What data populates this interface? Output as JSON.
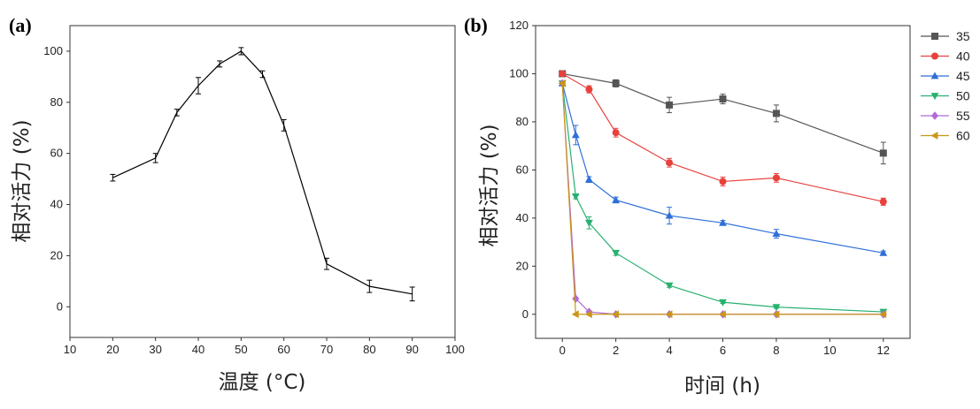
{
  "chart_data": [
    {
      "panel_label": "(a)",
      "type": "line",
      "xlabel": "温度 (°C)",
      "ylabel": "相对活力 (%)",
      "xlim": [
        10,
        100
      ],
      "ylim": [
        -12,
        110
      ],
      "x_ticks": [
        10,
        20,
        30,
        40,
        50,
        60,
        70,
        80,
        90,
        100
      ],
      "y_ticks": [
        0,
        20,
        40,
        60,
        80,
        100
      ],
      "series": [
        {
          "color": "#000000",
          "x": [
            20,
            30,
            35,
            40,
            45,
            50,
            55,
            60,
            70,
            80,
            90
          ],
          "y": [
            50.5,
            58.2,
            76,
            86.5,
            95,
            100,
            91,
            71,
            16.8,
            8,
            5
          ],
          "err": [
            1.3,
            1.8,
            1.3,
            3.2,
            1.2,
            1.4,
            1.3,
            2.2,
            2.2,
            2.4,
            2.7
          ]
        }
      ]
    },
    {
      "panel_label": "(b)",
      "type": "line",
      "xlabel": "时间 (h)",
      "ylabel": "相对活力 (%)",
      "xlim": [
        -1,
        13
      ],
      "ylim": [
        -10,
        120
      ],
      "x_ticks": [
        0,
        2,
        4,
        6,
        8,
        10,
        12
      ],
      "y_ticks": [
        0,
        20,
        40,
        60,
        80,
        100,
        120
      ],
      "legend_position": "outside-right",
      "series": [
        {
          "name": "35",
          "color": "#555555",
          "marker": "square",
          "x": [
            0,
            2,
            4,
            6,
            8,
            12
          ],
          "y": [
            100,
            96,
            87,
            89.5,
            83.5,
            67
          ],
          "err": [
            0,
            1.5,
            3.2,
            2,
            3.5,
            4.5
          ]
        },
        {
          "name": "40",
          "color": "#e8413c",
          "marker": "circle",
          "x": [
            0,
            1,
            2,
            4,
            6,
            8,
            12
          ],
          "y": [
            100,
            93.5,
            75.5,
            63,
            55.2,
            56.7,
            46.8
          ],
          "err": [
            0,
            1.5,
            1.8,
            1.8,
            1.8,
            1.8,
            1.5
          ]
        },
        {
          "name": "45",
          "color": "#2e6fd8",
          "marker": "triangle-up",
          "x": [
            0,
            0.5,
            1,
            2,
            4,
            6,
            8,
            12
          ],
          "y": [
            96,
            74.5,
            56,
            47.5,
            41,
            38,
            33.5,
            25.5
          ],
          "err": [
            0,
            4,
            1.2,
            1.2,
            3.5,
            1,
            1.8,
            0.8
          ]
        },
        {
          "name": "50",
          "color": "#27b16f",
          "marker": "triangle-down",
          "x": [
            0,
            0.5,
            1,
            2,
            4,
            6,
            8,
            12
          ],
          "y": [
            96,
            49,
            38,
            25.5,
            12,
            5,
            3,
            1
          ],
          "err": [
            0,
            1,
            2.5,
            1,
            0.8,
            0.5,
            0.5,
            0.3
          ]
        },
        {
          "name": "55",
          "color": "#b06bd6",
          "marker": "diamond",
          "x": [
            0,
            0.5,
            1,
            2,
            4,
            6,
            8,
            12
          ],
          "y": [
            96,
            6.5,
            1,
            0,
            0,
            0,
            0,
            0
          ],
          "err": [
            0,
            0,
            0,
            0,
            0,
            0,
            0,
            0
          ]
        },
        {
          "name": "60",
          "color": "#c9961a",
          "marker": "triangle-left",
          "x": [
            0,
            0.5,
            1,
            2,
            4,
            6,
            8,
            12
          ],
          "y": [
            96,
            0,
            0,
            0,
            0,
            0,
            0,
            0
          ],
          "err": [
            0,
            0,
            0,
            0,
            0,
            0,
            0,
            0
          ]
        }
      ]
    }
  ]
}
